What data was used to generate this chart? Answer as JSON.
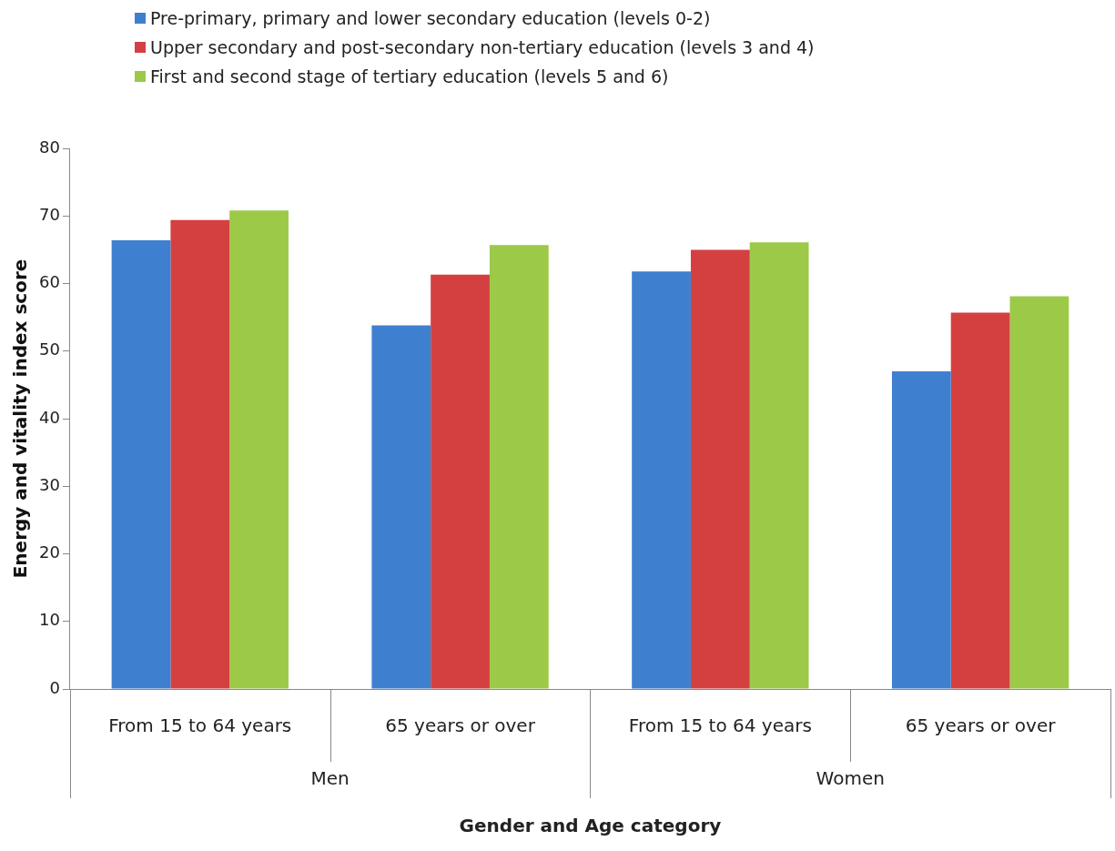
{
  "chart_data": {
    "type": "bar",
    "xlabel": "Gender and Age category",
    "ylabel": "Energy and vitality index score",
    "categories": [
      "From 15 to 64 years",
      "65 years or over",
      "From 15 to 64 years",
      "65 years or over"
    ],
    "annotations": [
      "Men",
      "Women"
    ],
    "series": [
      {
        "name": "Pre-primary, primary and lower secondary education (levels 0-2)",
        "color": "#3f7fd0",
        "values": [
          66.4,
          53.8,
          61.8,
          47.0
        ]
      },
      {
        "name": "Upper secondary and post-secondary non-tertiary education (levels 3 and 4)",
        "color": "#d44040",
        "values": [
          69.4,
          61.3,
          65.0,
          55.7
        ]
      },
      {
        "name": "First and second stage of tertiary education (levels 5 and 6)",
        "color": "#9dc948",
        "values": [
          70.8,
          65.7,
          66.1,
          58.1
        ]
      }
    ],
    "ylim": [
      0,
      80
    ],
    "yticks": [
      0,
      10,
      20,
      30,
      40,
      50,
      60,
      70,
      80
    ],
    "grid": false,
    "legend": "top"
  }
}
